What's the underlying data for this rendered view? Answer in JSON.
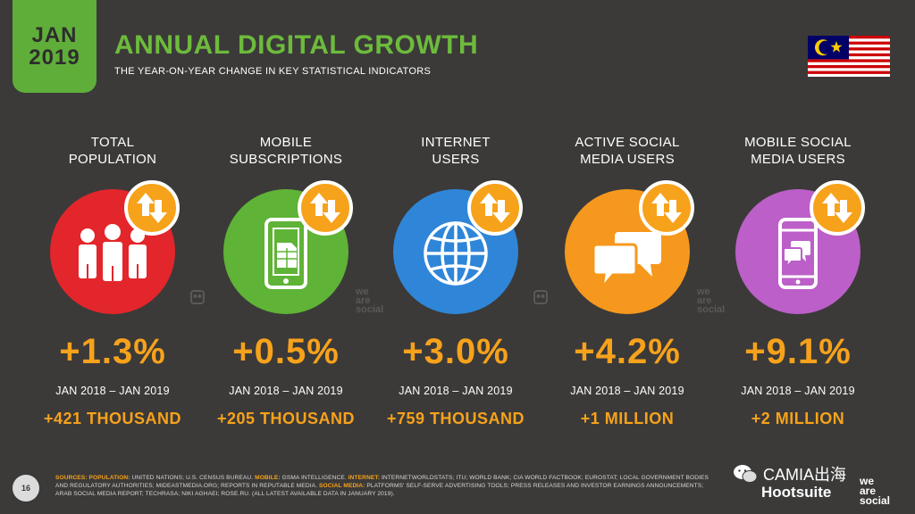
{
  "header": {
    "date_month": "JAN",
    "date_year": "2019",
    "title": "ANNUAL DIGITAL GROWTH",
    "subtitle": "THE YEAR-ON-YEAR CHANGE IN KEY STATISTICAL INDICATORS"
  },
  "flag_icon": "malaysia-flag",
  "colors": {
    "background": "#3b3a39",
    "title_green": "#6dbb3c",
    "accent_orange": "#f7a21b"
  },
  "metrics": [
    {
      "label_line1": "TOTAL",
      "label_line2": "POPULATION",
      "icon": "people-icon",
      "color": "#e3262b",
      "pct": "+1.3%",
      "period": "JAN 2018 – JAN 2019",
      "abs": "+421 THOUSAND"
    },
    {
      "label_line1": "MOBILE",
      "label_line2": "SUBSCRIPTIONS",
      "icon": "sim-phone-icon",
      "color": "#5fb336",
      "pct": "+0.5%",
      "period": "JAN 2018 – JAN 2019",
      "abs": "+205 THOUSAND"
    },
    {
      "label_line1": "INTERNET",
      "label_line2": "USERS",
      "icon": "globe-icon",
      "color": "#2f86d8",
      "pct": "+3.0%",
      "period": "JAN 2018 – JAN 2019",
      "abs": "+759 THOUSAND"
    },
    {
      "label_line1": "ACTIVE SOCIAL",
      "label_line2": "MEDIA USERS",
      "icon": "chat-bubbles-icon",
      "color": "#f6981d",
      "pct": "+4.2%",
      "period": "JAN 2018 – JAN 2019",
      "abs": "+1 MILLION"
    },
    {
      "label_line1": "MOBILE SOCIAL",
      "label_line2": "MEDIA USERS",
      "icon": "phone-chat-icon",
      "color": "#bc5fc8",
      "pct": "+9.1%",
      "period": "JAN 2018 – JAN 2019",
      "abs": "+2 MILLION"
    }
  ],
  "badge_icon": "up-down-arrows-icon",
  "watermark": {
    "line1": "we",
    "line2": "are",
    "line3": "social"
  },
  "footer": {
    "page_number": "16",
    "sources_label": "SOURCES:",
    "src_population_label": "POPULATION:",
    "src_population_text": "UNITED NATIONS; U.S. CENSUS BUREAU.",
    "src_mobile_label": "MOBILE:",
    "src_mobile_text": "GSMA INTELLIGENCE.",
    "src_internet_label": "INTERNET:",
    "src_internet_text": "INTERNETWORLDSTATS; ITU; WORLD BANK; CIA WORLD FACTBOOK; EUROSTAT; LOCAL GOVERNMENT BODIES AND REGULATORY AUTHORITIES; MIDEASTMEDIA.ORG; REPORTS IN REPUTABLE MEDIA.",
    "src_social_label": "SOCIAL MEDIA:",
    "src_social_text": "PLATFORMS' SELF-SERVE ADVERTISING TOOLS; PRESS RELEASES AND INVESTOR EARNINGS ANNOUNCEMENTS; ARAB SOCIAL MEDIA REPORT; TECHRASA; NIKI AGHAEI; ROSE.RU. (ALL LATEST AVAILABLE DATA IN JANUARY 2019).",
    "camia_label": "CAMIA出海",
    "hootsuite": "Hootsuite",
    "was_line1": "we",
    "was_line2": "are",
    "was_line3": "social"
  }
}
